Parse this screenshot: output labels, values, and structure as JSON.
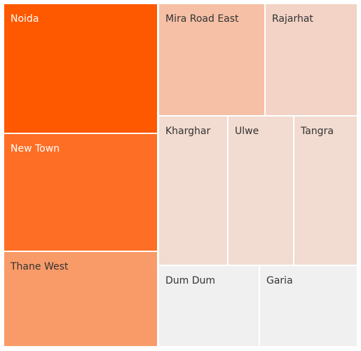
{
  "chart_data": {
    "type": "treemap",
    "title": "",
    "color_scale": {
      "low": "#f0f0f0",
      "high": "#fe5800"
    },
    "nodes": [
      {
        "label": "Noida",
        "color": "#fe5800"
      },
      {
        "label": "New Town",
        "color": "#fe6e24"
      },
      {
        "label": "Thane West",
        "color": "#f99b68"
      },
      {
        "label": "Mira Road East",
        "color": "#f5c0a6"
      },
      {
        "label": "Rajarhat",
        "color": "#f2d3c5"
      },
      {
        "label": "Kharghar",
        "color": "#f2dbd0"
      },
      {
        "label": "Ulwe",
        "color": "#f2dbd0"
      },
      {
        "label": "Tangra",
        "color": "#f2dbd0"
      },
      {
        "label": "Dum Dum",
        "color": "#f0f0f0"
      },
      {
        "label": "Garia",
        "color": "#f0f0f0"
      }
    ]
  }
}
